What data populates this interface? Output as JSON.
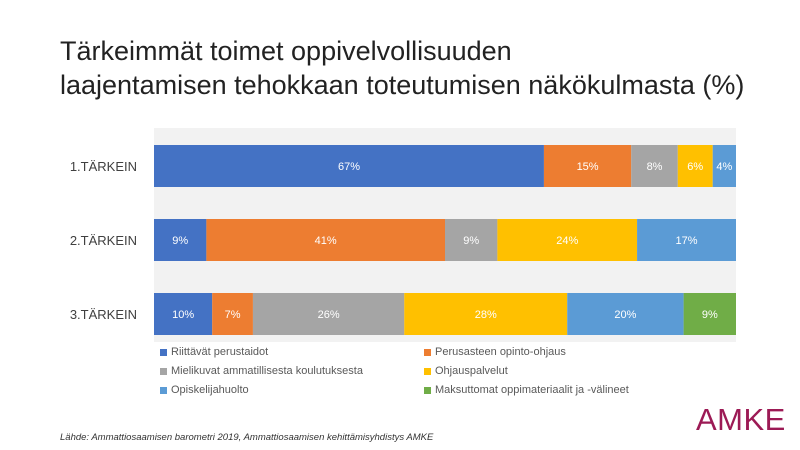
{
  "title_lines": [
    "Tärkeimmät toimet oppivelvollisuuden",
    "laajentamisen tehokkaan toteutumisen näkökulmasta (%)"
  ],
  "source": "Lähde: Ammattiosaamisen barometri 2019, Ammattiosaamisen kehittämisyhdistys AMKE",
  "logo_text": "AMKE",
  "chart_data": {
    "type": "bar",
    "orientation": "horizontal",
    "stacked": true,
    "categories": [
      "1.TÄRKEIN",
      "2.TÄRKEIN",
      "3.TÄRKEIN"
    ],
    "series": [
      {
        "name": "Riittävät perustaidot",
        "color": "#4472C4",
        "values": [
          67,
          9,
          10
        ]
      },
      {
        "name": "Perusasteen opinto-ohjaus",
        "color": "#ED7D31",
        "values": [
          15,
          41,
          7
        ]
      },
      {
        "name": "Mielikuvat ammatillisesta koulutuksesta",
        "color": "#A5A5A5",
        "values": [
          8,
          9,
          26
        ]
      },
      {
        "name": "Ohjauspalvelut",
        "color": "#FFC000",
        "values": [
          6,
          24,
          28
        ]
      },
      {
        "name": "Opiskelijahuolto",
        "color": "#5B9BD5",
        "values": [
          4,
          17,
          20
        ]
      },
      {
        "name": "Maksuttomat oppimateriaalit ja -välineet",
        "color": "#70AD47",
        "values": [
          0,
          0,
          9
        ]
      }
    ],
    "value_format": "{v}%",
    "data_label_color": "#FFFFFF",
    "legend_position": "bottom",
    "grid": false,
    "background_color": "#F2F2F2"
  }
}
